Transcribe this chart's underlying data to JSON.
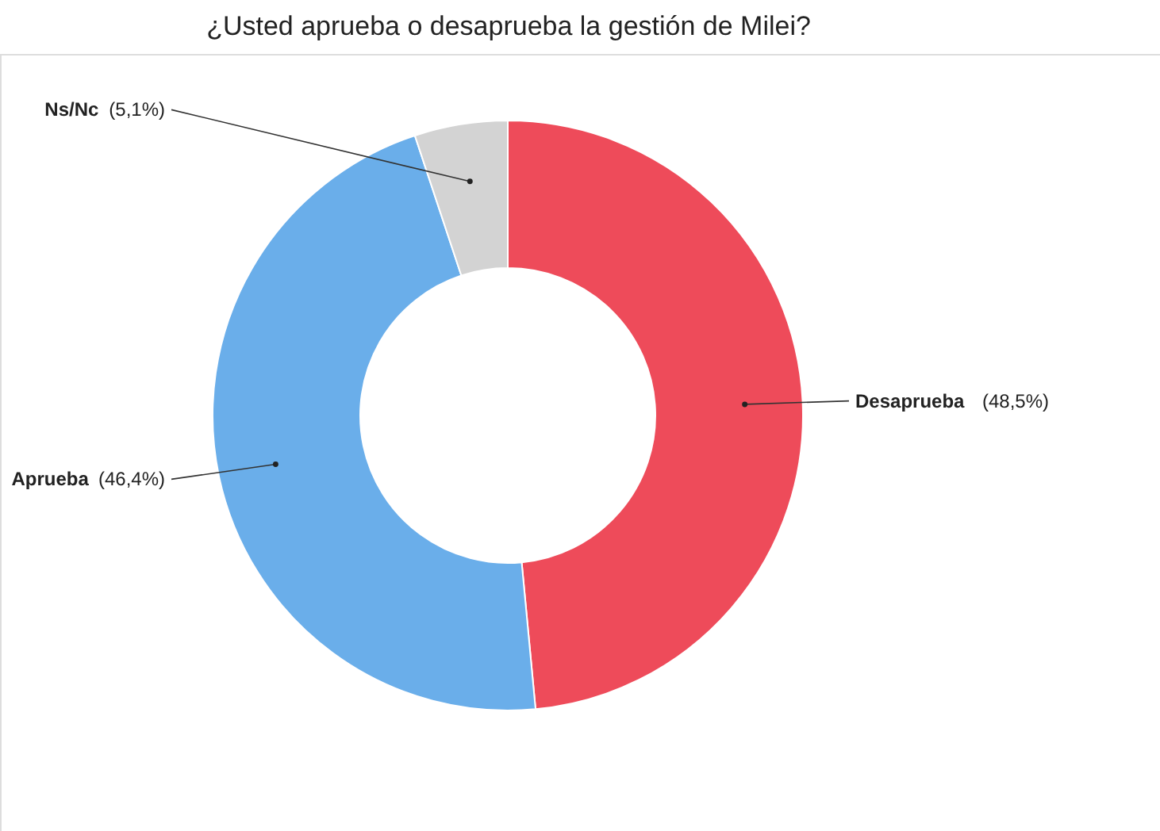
{
  "chart_data": {
    "type": "donut",
    "title": "¿Usted aprueba o desaprueba la gestión de Milei?",
    "categories": [
      "Desaprueba",
      "Aprueba",
      "Ns/Nc"
    ],
    "values": [
      48.5,
      46.4,
      5.1
    ],
    "colors": [
      "#ee4b5a",
      "#6aaeea",
      "#d3d3d3"
    ],
    "value_labels": [
      "(48,5%)",
      "(46,4%)",
      "(5,1%)"
    ],
    "legend": false
  }
}
